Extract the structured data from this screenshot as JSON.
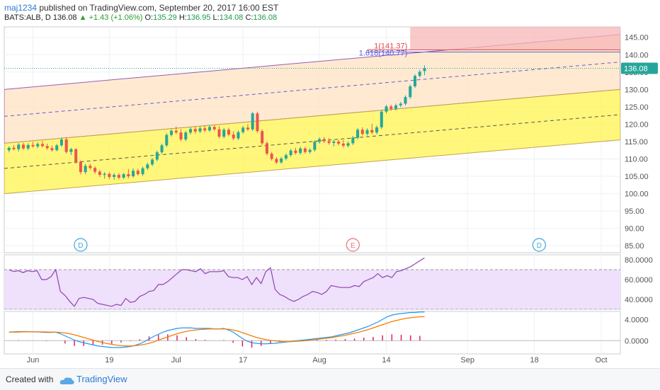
{
  "header": {
    "author": "maj1234",
    "published": " published on TradingView.com, September 20, 2017 16:00 EST",
    "symbol": "BATS:ALB, D",
    "last": "136.08",
    "change": "+1.43 (+1.06%)",
    "ohlc": {
      "o_label": "O:",
      "o": "135.29",
      "h_label": "H:",
      "h": "136.95",
      "l_label": "L:",
      "l": "134.08",
      "c_label": "C:",
      "c": "136.08"
    }
  },
  "footer": {
    "created_with": "Created with",
    "brand": "TradingView"
  },
  "colors": {
    "up": "#26a69a",
    "down": "#ef5350",
    "rsi": "#8e44ad",
    "macd": "#2196f3",
    "signal": "#f57c00",
    "price_tag": "#26a69a"
  },
  "chart_data": [
    {
      "type": "candlestick",
      "ylim": [
        83,
        148
      ],
      "yticks": [
        "145.00",
        "140.00",
        "135.00",
        "130.00",
        "125.00",
        "120.00",
        "115.00",
        "110.00",
        "105.00",
        "100.00",
        "95.00",
        "90.00",
        "85.00"
      ],
      "ytick_values": [
        145,
        140,
        135,
        130,
        125,
        120,
        115,
        110,
        105,
        100,
        95,
        90,
        85
      ],
      "xticks": [
        "Jun",
        "19",
        "Jul",
        "17",
        "Aug",
        "14",
        "Sep",
        "18",
        "Oct"
      ],
      "xtick_days": [
        3,
        19,
        33,
        47,
        63,
        77,
        94,
        108,
        122
      ],
      "last_price_label": "136.08",
      "last_price": 136.08,
      "fib_labels": [
        {
          "text": "1(141.37)",
          "value": 141.37
        },
        {
          "text": "1.618(140.77)",
          "value": 140.77
        }
      ],
      "event_markers": [
        {
          "text": "D",
          "day": 13
        },
        {
          "text": "E",
          "day": 70
        },
        {
          "text": "D",
          "day": 109
        }
      ],
      "channel_inner": {
        "start_day": -3,
        "end_day": 126,
        "lower": [
          100.0,
          115.5
        ],
        "upper": [
          114.5,
          130.0
        ]
      },
      "channel_outer": {
        "lower": [
          114.5,
          130.0
        ],
        "upper": [
          130.0,
          145.8
        ]
      },
      "candles": [
        {
          "d": -2,
          "o": 112.5,
          "h": 113.6,
          "l": 111.9,
          "c": 113.2
        },
        {
          "d": -1,
          "o": 113.2,
          "h": 114.0,
          "l": 112.4,
          "c": 112.8
        },
        {
          "d": 0,
          "o": 112.8,
          "h": 114.6,
          "l": 112.1,
          "c": 114.1
        },
        {
          "d": 1,
          "o": 114.1,
          "h": 114.7,
          "l": 112.6,
          "c": 113.0
        },
        {
          "d": 2,
          "o": 113.0,
          "h": 114.5,
          "l": 112.5,
          "c": 114.0
        },
        {
          "d": 3,
          "o": 114.0,
          "h": 114.9,
          "l": 113.2,
          "c": 113.6
        },
        {
          "d": 4,
          "o": 113.6,
          "h": 114.8,
          "l": 113.1,
          "c": 114.3
        },
        {
          "d": 5,
          "o": 114.3,
          "h": 115.1,
          "l": 113.3,
          "c": 113.7
        },
        {
          "d": 6,
          "o": 113.7,
          "h": 114.4,
          "l": 112.6,
          "c": 113.1
        },
        {
          "d": 7,
          "o": 113.1,
          "h": 113.9,
          "l": 112.1,
          "c": 112.5
        },
        {
          "d": 8,
          "o": 112.5,
          "h": 114.3,
          "l": 112.2,
          "c": 113.9
        },
        {
          "d": 9,
          "o": 113.9,
          "h": 116.2,
          "l": 113.5,
          "c": 115.6
        },
        {
          "d": 10,
          "o": 115.6,
          "h": 116.3,
          "l": 111.5,
          "c": 112.0
        },
        {
          "d": 11,
          "o": 112.0,
          "h": 113.2,
          "l": 111.1,
          "c": 112.8
        },
        {
          "d": 12,
          "o": 112.8,
          "h": 113.0,
          "l": 108.6,
          "c": 109.2
        },
        {
          "d": 13,
          "o": 109.2,
          "h": 109.6,
          "l": 105.5,
          "c": 106.2
        },
        {
          "d": 14,
          "o": 106.2,
          "h": 108.6,
          "l": 105.6,
          "c": 108.0
        },
        {
          "d": 15,
          "o": 108.0,
          "h": 108.6,
          "l": 106.9,
          "c": 107.4
        },
        {
          "d": 16,
          "o": 107.4,
          "h": 107.9,
          "l": 105.7,
          "c": 106.3
        },
        {
          "d": 17,
          "o": 106.3,
          "h": 106.8,
          "l": 104.8,
          "c": 105.4
        },
        {
          "d": 18,
          "o": 105.4,
          "h": 106.2,
          "l": 104.3,
          "c": 105.7
        },
        {
          "d": 19,
          "o": 105.7,
          "h": 106.1,
          "l": 104.2,
          "c": 104.8
        },
        {
          "d": 20,
          "o": 104.8,
          "h": 105.9,
          "l": 104.0,
          "c": 105.4
        },
        {
          "d": 21,
          "o": 105.4,
          "h": 105.9,
          "l": 104.1,
          "c": 104.6
        },
        {
          "d": 22,
          "o": 104.6,
          "h": 106.0,
          "l": 104.2,
          "c": 105.6
        },
        {
          "d": 23,
          "o": 105.6,
          "h": 107.1,
          "l": 104.4,
          "c": 105.0
        },
        {
          "d": 24,
          "o": 105.0,
          "h": 107.3,
          "l": 104.6,
          "c": 106.6
        },
        {
          "d": 25,
          "o": 106.6,
          "h": 107.2,
          "l": 105.2,
          "c": 105.6
        },
        {
          "d": 26,
          "o": 105.6,
          "h": 107.8,
          "l": 105.1,
          "c": 107.3
        },
        {
          "d": 27,
          "o": 107.3,
          "h": 108.9,
          "l": 106.8,
          "c": 108.4
        },
        {
          "d": 28,
          "o": 108.4,
          "h": 110.3,
          "l": 107.9,
          "c": 109.8
        },
        {
          "d": 29,
          "o": 109.8,
          "h": 112.4,
          "l": 109.3,
          "c": 111.9
        },
        {
          "d": 30,
          "o": 111.9,
          "h": 114.4,
          "l": 111.4,
          "c": 113.9
        },
        {
          "d": 31,
          "o": 113.9,
          "h": 117.4,
          "l": 113.4,
          "c": 116.9
        },
        {
          "d": 32,
          "o": 116.9,
          "h": 118.6,
          "l": 116.4,
          "c": 118.1
        },
        {
          "d": 33,
          "o": 118.1,
          "h": 119.3,
          "l": 117.1,
          "c": 117.6
        },
        {
          "d": 34,
          "o": 117.6,
          "h": 118.6,
          "l": 115.1,
          "c": 115.6
        },
        {
          "d": 35,
          "o": 115.6,
          "h": 118.1,
          "l": 115.1,
          "c": 117.6
        },
        {
          "d": 36,
          "o": 117.6,
          "h": 119.1,
          "l": 117.0,
          "c": 118.6
        },
        {
          "d": 37,
          "o": 118.6,
          "h": 119.4,
          "l": 117.3,
          "c": 117.9
        },
        {
          "d": 38,
          "o": 117.9,
          "h": 119.3,
          "l": 117.4,
          "c": 118.8
        },
        {
          "d": 39,
          "o": 118.8,
          "h": 119.5,
          "l": 117.7,
          "c": 118.2
        },
        {
          "d": 40,
          "o": 118.2,
          "h": 119.7,
          "l": 117.8,
          "c": 119.2
        },
        {
          "d": 41,
          "o": 119.2,
          "h": 119.7,
          "l": 118.0,
          "c": 118.5
        },
        {
          "d": 42,
          "o": 118.5,
          "h": 119.4,
          "l": 115.9,
          "c": 116.4
        },
        {
          "d": 43,
          "o": 116.4,
          "h": 118.9,
          "l": 115.9,
          "c": 118.4
        },
        {
          "d": 44,
          "o": 118.4,
          "h": 119.0,
          "l": 116.5,
          "c": 117.0
        },
        {
          "d": 45,
          "o": 117.0,
          "h": 118.0,
          "l": 115.4,
          "c": 115.9
        },
        {
          "d": 46,
          "o": 115.9,
          "h": 118.2,
          "l": 115.4,
          "c": 117.7
        },
        {
          "d": 47,
          "o": 117.7,
          "h": 119.5,
          "l": 117.2,
          "c": 119.0
        },
        {
          "d": 48,
          "o": 119.0,
          "h": 120.0,
          "l": 118.0,
          "c": 118.5
        },
        {
          "d": 49,
          "o": 118.5,
          "h": 123.6,
          "l": 118.0,
          "c": 123.1
        },
        {
          "d": 50,
          "o": 123.1,
          "h": 123.6,
          "l": 117.5,
          "c": 118.0
        },
        {
          "d": 51,
          "o": 118.0,
          "h": 118.5,
          "l": 114.0,
          "c": 114.5
        },
        {
          "d": 52,
          "o": 114.5,
          "h": 115.0,
          "l": 111.0,
          "c": 111.5
        },
        {
          "d": 53,
          "o": 111.5,
          "h": 112.0,
          "l": 109.5,
          "c": 110.0
        },
        {
          "d": 54,
          "o": 110.0,
          "h": 110.5,
          "l": 108.5,
          "c": 109.0
        },
        {
          "d": 55,
          "o": 109.0,
          "h": 110.6,
          "l": 108.6,
          "c": 110.1
        },
        {
          "d": 56,
          "o": 110.1,
          "h": 111.6,
          "l": 109.6,
          "c": 111.1
        },
        {
          "d": 57,
          "o": 111.1,
          "h": 112.9,
          "l": 110.6,
          "c": 112.4
        },
        {
          "d": 58,
          "o": 112.4,
          "h": 113.2,
          "l": 111.2,
          "c": 111.7
        },
        {
          "d": 59,
          "o": 111.7,
          "h": 113.5,
          "l": 111.2,
          "c": 113.0
        },
        {
          "d": 60,
          "o": 113.0,
          "h": 113.5,
          "l": 111.5,
          "c": 112.0
        },
        {
          "d": 61,
          "o": 112.0,
          "h": 113.1,
          "l": 111.5,
          "c": 112.6
        },
        {
          "d": 62,
          "o": 112.6,
          "h": 115.4,
          "l": 112.1,
          "c": 114.9
        },
        {
          "d": 63,
          "o": 114.9,
          "h": 116.2,
          "l": 114.4,
          "c": 115.7
        },
        {
          "d": 64,
          "o": 115.7,
          "h": 116.3,
          "l": 114.6,
          "c": 115.1
        },
        {
          "d": 65,
          "o": 115.1,
          "h": 116.0,
          "l": 114.1,
          "c": 114.6
        },
        {
          "d": 66,
          "o": 114.6,
          "h": 115.5,
          "l": 113.6,
          "c": 115.0
        },
        {
          "d": 67,
          "o": 115.0,
          "h": 115.5,
          "l": 113.9,
          "c": 114.4
        },
        {
          "d": 68,
          "o": 114.4,
          "h": 115.4,
          "l": 113.3,
          "c": 113.8
        },
        {
          "d": 69,
          "o": 113.8,
          "h": 115.0,
          "l": 113.3,
          "c": 114.5
        },
        {
          "d": 70,
          "o": 114.5,
          "h": 116.6,
          "l": 114.0,
          "c": 116.1
        },
        {
          "d": 71,
          "o": 116.1,
          "h": 118.9,
          "l": 115.6,
          "c": 118.4
        },
        {
          "d": 72,
          "o": 118.4,
          "h": 119.1,
          "l": 116.7,
          "c": 117.2
        },
        {
          "d": 73,
          "o": 117.2,
          "h": 118.8,
          "l": 116.7,
          "c": 118.3
        },
        {
          "d": 74,
          "o": 118.3,
          "h": 120.1,
          "l": 117.1,
          "c": 117.6
        },
        {
          "d": 75,
          "o": 117.6,
          "h": 119.6,
          "l": 117.1,
          "c": 119.1
        },
        {
          "d": 76,
          "o": 119.1,
          "h": 124.1,
          "l": 118.6,
          "c": 123.6
        },
        {
          "d": 77,
          "o": 123.6,
          "h": 125.6,
          "l": 123.1,
          "c": 125.1
        },
        {
          "d": 78,
          "o": 125.1,
          "h": 125.6,
          "l": 123.9,
          "c": 124.4
        },
        {
          "d": 79,
          "o": 124.4,
          "h": 125.9,
          "l": 123.9,
          "c": 125.4
        },
        {
          "d": 80,
          "o": 125.4,
          "h": 126.4,
          "l": 124.9,
          "c": 125.9
        },
        {
          "d": 81,
          "o": 125.9,
          "h": 128.3,
          "l": 125.4,
          "c": 127.8
        },
        {
          "d": 82,
          "o": 127.8,
          "h": 131.4,
          "l": 127.3,
          "c": 130.9
        },
        {
          "d": 83,
          "o": 130.9,
          "h": 134.4,
          "l": 130.4,
          "c": 133.9
        },
        {
          "d": 84,
          "o": 133.9,
          "h": 135.6,
          "l": 133.4,
          "c": 135.1
        },
        {
          "d": 85,
          "o": 135.29,
          "h": 136.95,
          "l": 134.08,
          "c": 136.08
        }
      ]
    },
    {
      "type": "line",
      "indicator": "RSI",
      "ylim": [
        30,
        85
      ],
      "yticks": [
        "80.0000",
        "60.0000",
        "40.0000"
      ],
      "ytick_values": [
        80,
        60,
        40
      ],
      "band": [
        30,
        70
      ],
      "values": [
        70,
        68,
        69,
        67,
        69,
        68,
        69,
        60,
        60,
        63,
        70,
        48,
        44,
        38,
        33,
        41,
        42,
        41,
        40,
        36,
        35,
        34,
        33,
        35,
        34,
        41,
        37,
        38,
        43,
        45,
        48,
        49,
        55,
        55,
        58,
        62,
        66,
        70,
        70,
        69,
        68,
        71,
        66,
        68,
        68,
        68,
        69,
        63,
        62,
        62,
        60,
        63,
        55,
        62,
        56,
        68,
        72,
        50,
        45,
        43,
        40,
        38,
        40,
        43,
        45,
        48,
        47,
        45,
        48,
        54,
        53,
        52,
        52,
        52,
        54,
        53,
        58,
        60,
        62,
        66,
        62,
        64,
        62,
        68,
        69,
        71,
        73,
        76,
        79,
        82
      ]
    },
    {
      "type": "line",
      "indicator": "MACD",
      "ylim": [
        -2.5,
        5.5
      ],
      "yticks": [
        "4.0000",
        "0.0000"
      ],
      "ytick_values": [
        4,
        0
      ],
      "series": [
        {
          "values": [
            1.6,
            1.65,
            1.7,
            1.7,
            1.7,
            1.65,
            1.65,
            1.6,
            1.55,
            1.55,
            1.6,
            1.3,
            0.9,
            0.5,
            0.1,
            -0.2,
            -0.4,
            -0.6,
            -0.8,
            -1.0,
            -1.1,
            -1.2,
            -1.3,
            -1.3,
            -1.3,
            -1.2,
            -1.1,
            -0.9,
            -0.6,
            -0.2,
            0.3,
            0.8,
            1.2,
            1.6,
            1.9,
            2.1,
            2.3,
            2.4,
            2.4,
            2.4,
            2.3,
            2.3,
            2.3,
            2.3,
            2.2,
            2.2,
            2.3,
            2.0,
            1.6,
            1.0,
            0.4,
            -0.1,
            -0.4,
            -0.5,
            -0.6,
            -0.6,
            -0.55,
            -0.5,
            -0.4,
            -0.3,
            -0.2,
            -0.1,
            0.0,
            0.1,
            0.2,
            0.3,
            0.4,
            0.5,
            0.6,
            0.7,
            0.9,
            1.1,
            1.3,
            1.5,
            1.8,
            2.1,
            2.4,
            2.7,
            3.1,
            3.5,
            4.0,
            4.5,
            4.8,
            5.0,
            5.1,
            5.2,
            5.3,
            5.3,
            5.4,
            5.4
          ]
        },
        {
          "values": [
            1.6,
            1.6,
            1.62,
            1.65,
            1.67,
            1.67,
            1.66,
            1.65,
            1.63,
            1.61,
            1.6,
            1.55,
            1.45,
            1.3,
            1.1,
            0.85,
            0.6,
            0.35,
            0.1,
            -0.15,
            -0.35,
            -0.55,
            -0.7,
            -0.85,
            -0.95,
            -1.0,
            -1.0,
            -0.95,
            -0.85,
            -0.7,
            -0.5,
            -0.25,
            0.1,
            0.4,
            0.7,
            1.0,
            1.3,
            1.55,
            1.75,
            1.9,
            2.0,
            2.1,
            2.15,
            2.2,
            2.2,
            2.2,
            2.2,
            2.15,
            2.0,
            1.8,
            1.5,
            1.2,
            0.9,
            0.6,
            0.4,
            0.2,
            0.05,
            -0.05,
            -0.15,
            -0.2,
            -0.2,
            -0.15,
            -0.1,
            -0.05,
            0.05,
            0.15,
            0.25,
            0.35,
            0.45,
            0.55,
            0.7,
            0.85,
            1.0,
            1.2,
            1.4,
            1.6,
            1.85,
            2.1,
            2.4,
            2.7,
            3.0,
            3.3,
            3.6,
            3.8,
            4.0,
            4.2,
            4.3,
            4.4,
            4.5,
            4.5
          ]
        }
      ],
      "histogram_scale": 1.0
    }
  ]
}
